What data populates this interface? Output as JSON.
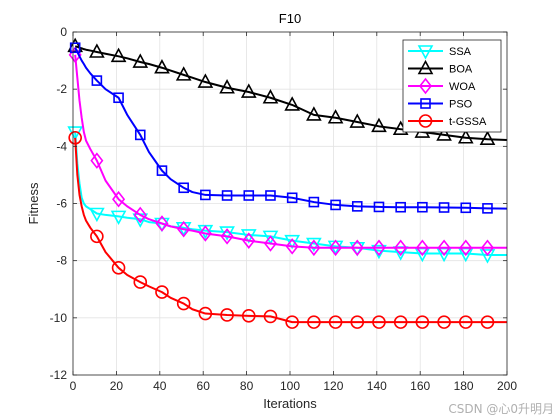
{
  "chart_data": {
    "type": "line",
    "title": "F10",
    "xlabel": "Iterations",
    "ylabel": "Fitness",
    "xlim": [
      0,
      200
    ],
    "ylim": [
      -12,
      0
    ],
    "xticks": [
      0,
      20,
      40,
      60,
      80,
      100,
      120,
      140,
      160,
      180,
      200
    ],
    "yticks": [
      -12,
      -10,
      -8,
      -6,
      -4,
      -2,
      0
    ],
    "grid": true,
    "legend_position": "top-right",
    "x": [
      1,
      2,
      3,
      4,
      5,
      6,
      8,
      11,
      15,
      21,
      25,
      31,
      35,
      41,
      45,
      51,
      55,
      61,
      71,
      81,
      91,
      101,
      111,
      121,
      131,
      141,
      151,
      161,
      171,
      181,
      191,
      200
    ],
    "series": [
      {
        "name": "SSA",
        "color": "#00ffff",
        "marker": "triangle-down",
        "values": [
          -3.5,
          -4.6,
          -5.3,
          -5.8,
          -6.0,
          -6.1,
          -6.2,
          -6.35,
          -6.4,
          -6.45,
          -6.5,
          -6.55,
          -6.65,
          -6.7,
          -6.8,
          -6.85,
          -6.9,
          -6.95,
          -7.0,
          -7.1,
          -7.15,
          -7.3,
          -7.4,
          -7.5,
          -7.55,
          -7.65,
          -7.7,
          -7.75,
          -7.75,
          -7.75,
          -7.8,
          -7.8
        ]
      },
      {
        "name": "BOA",
        "color": "#000000",
        "marker": "triangle-up",
        "values": [
          -0.5,
          -0.52,
          -0.55,
          -0.57,
          -0.6,
          -0.62,
          -0.65,
          -0.7,
          -0.76,
          -0.85,
          -0.92,
          -1.05,
          -1.12,
          -1.25,
          -1.35,
          -1.5,
          -1.6,
          -1.75,
          -1.95,
          -2.1,
          -2.3,
          -2.55,
          -2.9,
          -3.0,
          -3.15,
          -3.3,
          -3.4,
          -3.5,
          -3.6,
          -3.7,
          -3.75,
          -3.78
        ]
      },
      {
        "name": "WOA",
        "color": "#ff00ff",
        "marker": "diamond",
        "values": [
          -0.8,
          -1.6,
          -2.4,
          -3.0,
          -3.5,
          -3.8,
          -4.1,
          -4.5,
          -5.2,
          -5.85,
          -6.1,
          -6.4,
          -6.55,
          -6.7,
          -6.8,
          -6.9,
          -6.95,
          -7.05,
          -7.15,
          -7.3,
          -7.4,
          -7.5,
          -7.55,
          -7.55,
          -7.55,
          -7.55,
          -7.55,
          -7.55,
          -7.55,
          -7.55,
          -7.55,
          -7.55
        ]
      },
      {
        "name": "PSO",
        "color": "#0000ff",
        "marker": "square",
        "values": [
          -0.55,
          -0.7,
          -0.85,
          -1.0,
          -1.12,
          -1.25,
          -1.45,
          -1.7,
          -2.0,
          -2.3,
          -2.9,
          -3.6,
          -4.2,
          -4.85,
          -5.15,
          -5.45,
          -5.6,
          -5.7,
          -5.72,
          -5.72,
          -5.72,
          -5.8,
          -5.95,
          -6.05,
          -6.1,
          -6.12,
          -6.13,
          -6.13,
          -6.14,
          -6.15,
          -6.17,
          -6.18
        ]
      },
      {
        "name": "t-GSSA",
        "color": "#ff0000",
        "marker": "circle",
        "values": [
          -3.7,
          -5.0,
          -5.7,
          -6.1,
          -6.4,
          -6.6,
          -6.85,
          -7.15,
          -7.7,
          -8.25,
          -8.5,
          -8.75,
          -8.9,
          -9.1,
          -9.3,
          -9.5,
          -9.7,
          -9.85,
          -9.9,
          -9.93,
          -9.95,
          -10.15,
          -10.15,
          -10.15,
          -10.15,
          -10.15,
          -10.15,
          -10.15,
          -10.15,
          -10.15,
          -10.15,
          -10.15
        ]
      }
    ],
    "marker_every": [
      1,
      11,
      21,
      31,
      41,
      51,
      61,
      71,
      81,
      91,
      101,
      111,
      121,
      131,
      141,
      151,
      161,
      171,
      181,
      191
    ]
  },
  "watermark": "CSDN @心0升明月"
}
